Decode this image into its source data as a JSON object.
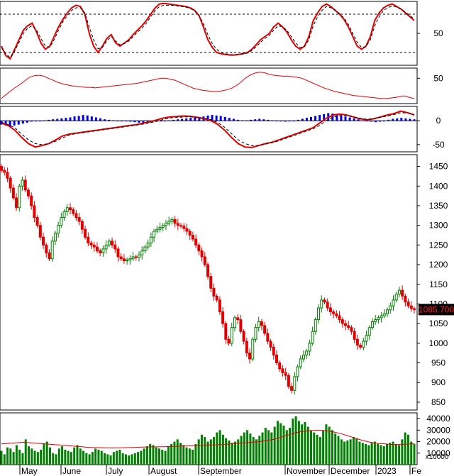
{
  "chart_data": [
    {
      "type": "line",
      "panel": "stochastic",
      "y_ticks": [
        {
          "value": 50,
          "label": "50"
        }
      ],
      "dashed_levels": [
        80,
        20
      ],
      "ylim": [
        0,
        100
      ],
      "series": [
        {
          "color": "#e00000",
          "values": [
            30,
            15,
            10,
            25,
            40,
            55,
            62,
            66,
            52,
            35,
            25,
            30,
            45,
            60,
            72,
            82,
            90,
            94,
            92,
            80,
            50,
            30,
            20,
            30,
            42,
            48,
            35,
            30,
            35,
            40,
            48,
            55,
            62,
            70,
            80,
            90,
            96,
            97,
            96,
            95,
            94,
            93,
            92,
            90,
            86,
            78,
            60,
            40,
            28,
            20,
            18,
            17,
            16,
            16,
            17,
            18,
            20,
            25,
            32,
            40,
            45,
            50,
            60,
            66,
            60,
            52,
            40,
            30,
            25,
            30,
            45,
            70,
            82,
            92,
            96,
            92,
            86,
            80,
            72,
            60,
            45,
            30,
            25,
            30,
            45,
            70,
            82,
            90,
            94,
            96,
            92,
            88,
            82,
            76,
            70
          ]
        },
        {
          "color": "#000000",
          "dashed": true,
          "values": [
            28,
            18,
            12,
            22,
            36,
            50,
            58,
            62,
            55,
            42,
            30,
            28,
            40,
            55,
            68,
            78,
            86,
            90,
            90,
            82,
            60,
            40,
            26,
            28,
            38,
            45,
            38,
            32,
            34,
            38,
            45,
            52,
            58,
            66,
            76,
            86,
            92,
            94,
            94,
            94,
            93,
            92,
            91,
            89,
            85,
            78,
            65,
            48,
            34,
            25,
            20,
            18,
            17,
            16,
            17,
            18,
            19,
            23,
            29,
            36,
            42,
            47,
            55,
            62,
            60,
            55,
            45,
            35,
            28,
            29,
            40,
            62,
            76,
            86,
            92,
            90,
            86,
            81,
            74,
            64,
            50,
            36,
            28,
            29,
            40,
            62,
            76,
            86,
            90,
            93,
            91,
            88,
            83,
            78,
            72
          ]
        }
      ]
    },
    {
      "type": "line",
      "panel": "indicator",
      "y_ticks": [
        {
          "value": 50,
          "label": "50"
        }
      ],
      "ylim": [
        0,
        70
      ],
      "series": [
        {
          "color": "#e00000",
          "values": [
            10,
            18,
            25,
            32,
            38,
            45,
            52,
            55,
            56,
            54,
            50,
            46,
            42,
            39,
            37,
            35,
            34,
            33,
            32,
            32,
            31,
            32,
            33,
            34,
            35,
            36,
            37,
            38,
            39,
            40,
            42,
            44,
            46,
            48,
            50,
            50,
            48,
            46,
            42,
            38,
            34,
            30,
            28,
            26,
            25,
            24,
            24,
            25,
            27,
            30,
            35,
            42,
            50,
            56,
            60,
            62,
            61,
            58,
            56,
            55,
            54,
            54,
            53,
            52,
            50,
            46,
            42,
            38,
            34,
            30,
            27,
            24,
            22,
            20,
            18,
            16,
            15,
            14,
            13,
            12,
            11,
            10,
            10,
            11,
            12,
            14,
            15,
            12,
            10
          ]
        }
      ]
    },
    {
      "type": "line",
      "panel": "macd",
      "y_ticks": [
        {
          "value": 0,
          "label": "0"
        },
        {
          "value": -50,
          "label": "-50"
        }
      ],
      "ylim": [
        -65,
        30
      ],
      "series": [
        {
          "color": "#e00000",
          "values": [
            -5,
            -10,
            -20,
            -35,
            -48,
            -55,
            -52,
            -48,
            -40,
            -32,
            -28,
            -26,
            -24,
            -22,
            -20,
            -18,
            -16,
            -14,
            -12,
            -10,
            -8,
            -5,
            -2,
            2,
            6,
            8,
            9,
            10,
            9,
            7,
            4,
            0,
            -8,
            -20,
            -35,
            -48,
            -55,
            -56,
            -52,
            -48,
            -45,
            -40,
            -35,
            -30,
            -25,
            -20,
            -15,
            -5,
            5,
            12,
            14,
            12,
            8,
            4,
            2,
            4,
            8,
            12,
            15,
            20,
            17,
            12
          ]
        },
        {
          "color": "#000000",
          "dashed": true,
          "values": [
            -3,
            -8,
            -15,
            -28,
            -40,
            -48,
            -50,
            -48,
            -43,
            -36,
            -30,
            -27,
            -25,
            -23,
            -21,
            -19,
            -17,
            -15,
            -13,
            -11,
            -9,
            -7,
            -4,
            -1,
            3,
            6,
            7,
            8,
            8,
            7,
            5,
            2,
            -4,
            -14,
            -27,
            -40,
            -48,
            -52,
            -52,
            -49,
            -46,
            -42,
            -37,
            -32,
            -27,
            -22,
            -17,
            -10,
            0,
            8,
            11,
            11,
            8,
            5,
            3,
            4,
            7,
            10,
            13,
            17,
            16,
            13
          ]
        }
      ],
      "histogram": [
        -8,
        -10,
        -12,
        -10,
        -8,
        -6,
        -4,
        -2,
        -1,
        0,
        1,
        2,
        3,
        4,
        5,
        6,
        7,
        9,
        10,
        12,
        11,
        9,
        7,
        5,
        3,
        2,
        1,
        0,
        0,
        -1,
        -2,
        -3,
        -4,
        -5,
        -4,
        -3,
        -2,
        -1,
        0,
        1,
        2,
        3,
        4,
        5,
        6,
        7,
        8,
        9,
        11,
        12,
        11,
        10,
        8,
        6,
        4,
        2,
        1,
        1,
        2,
        3,
        4,
        3,
        2,
        1,
        0,
        -1,
        -2,
        -1,
        0,
        2,
        4,
        6,
        8,
        10,
        12,
        14,
        16,
        15,
        13,
        11,
        9,
        7,
        5,
        3,
        1,
        -1,
        -2,
        -3,
        -2,
        0,
        2,
        4,
        5,
        6,
        5,
        4,
        3
      ]
    },
    {
      "type": "candlestick",
      "panel": "price",
      "ylim": [
        830,
        1480
      ],
      "y_ticks": [
        850,
        900,
        950,
        1000,
        1050,
        1100,
        1150,
        1200,
        1250,
        1300,
        1350,
        1400,
        1450
      ],
      "last_price_label": "1085.700",
      "x_labels": [
        "May",
        "June",
        "July",
        "August",
        "September",
        "November",
        "December",
        "2023",
        "Fe"
      ],
      "closes": [
        1440,
        1435,
        1420,
        1395,
        1370,
        1345,
        1400,
        1415,
        1390,
        1375,
        1350,
        1320,
        1300,
        1270,
        1250,
        1230,
        1215,
        1260,
        1280,
        1300,
        1320,
        1335,
        1345,
        1340,
        1330,
        1320,
        1310,
        1290,
        1270,
        1255,
        1250,
        1245,
        1235,
        1230,
        1240,
        1250,
        1260,
        1250,
        1240,
        1220,
        1215,
        1210,
        1212,
        1215,
        1220,
        1218,
        1225,
        1235,
        1245,
        1255,
        1270,
        1285,
        1290,
        1295,
        1300,
        1305,
        1310,
        1315,
        1305,
        1300,
        1298,
        1292,
        1285,
        1275,
        1265,
        1250,
        1235,
        1220,
        1200,
        1170,
        1140,
        1120,
        1110,
        1080,
        1050,
        1010,
        1000,
        1040,
        1065,
        1060,
        1030,
        1005,
        975,
        960,
        1010,
        1040,
        1055,
        1045,
        1025,
        1005,
        990,
        970,
        950,
        935,
        925,
        918,
        890,
        880,
        915,
        940,
        960,
        970,
        980,
        1000,
        1030,
        1060,
        1090,
        1110,
        1105,
        1090,
        1080,
        1075,
        1070,
        1060,
        1050,
        1045,
        1040,
        1030,
        1010,
        995,
        990,
        1005,
        1020,
        1040,
        1055,
        1060,
        1065,
        1070,
        1075,
        1085,
        1095,
        1110,
        1125,
        1135,
        1120,
        1105,
        1095,
        1088,
        1085.7
      ]
    },
    {
      "type": "bar",
      "panel": "volume",
      "ylim": [
        0,
        45000
      ],
      "y_ticks": [
        {
          "value": 40000,
          "label": "40000"
        },
        {
          "value": 30000,
          "label": "30000"
        },
        {
          "value": 20000,
          "label": "20000"
        },
        {
          "value": 10000,
          "label": "10000"
        }
      ],
      "unit_label": "x10000",
      "ma_values": [
        18000,
        18500,
        19000,
        19500,
        19000,
        18500,
        18000,
        17500,
        17000,
        16500,
        16000,
        15500,
        15000,
        14800,
        14700,
        14500,
        14600,
        14800,
        15000,
        15200,
        15400,
        15500,
        15600,
        15800,
        16000,
        16200,
        16500,
        16800,
        17000,
        17200,
        17500,
        18000,
        18500,
        19000,
        19500,
        20000,
        21000,
        22000,
        24000,
        26000,
        28000,
        29000,
        29500,
        30000,
        29500,
        28500,
        27000,
        25000,
        23000,
        21000,
        19500,
        18500,
        18000,
        17500,
        17500,
        17800,
        18200
      ],
      "volumes": [
        12000,
        9000,
        15000,
        14000,
        11000,
        17000,
        13000,
        10000,
        22000,
        16000,
        14000,
        12000,
        11000,
        13000,
        18000,
        20000,
        15000,
        10000,
        9000,
        14000,
        16000,
        13000,
        12000,
        11000,
        15000,
        17000,
        14000,
        12000,
        10000,
        9000,
        11000,
        14000,
        13000,
        12000,
        10000,
        9000,
        8000,
        11000,
        12000,
        13000,
        10000,
        9000,
        8000,
        9000,
        10000,
        11000,
        12000,
        14000,
        16000,
        18000,
        17000,
        15000,
        14000,
        13000,
        12000,
        16000,
        18000,
        20000,
        22000,
        19000,
        17000,
        15000,
        14000,
        13000,
        18000,
        22000,
        26000,
        24000,
        20000,
        22000,
        24000,
        28000,
        30000,
        26000,
        23000,
        21000,
        19000,
        20000,
        22000,
        25000,
        28000,
        30000,
        27000,
        24000,
        22000,
        25000,
        28000,
        32000,
        30000,
        28000,
        33000,
        38000,
        36000,
        34000,
        30000,
        32000,
        40000,
        42000,
        38000,
        35000,
        37000,
        33000,
        30000,
        28000,
        26000,
        24000,
        30000,
        35000,
        33000,
        30000,
        27000,
        25000,
        22000,
        20000,
        21000,
        22000,
        24000,
        23000,
        20000,
        19000,
        18000,
        17000,
        19000,
        20000,
        18000,
        17000,
        16000,
        18000,
        19000,
        20000,
        18000,
        17000,
        22000,
        28000,
        26000,
        20000,
        18000
      ]
    }
  ]
}
